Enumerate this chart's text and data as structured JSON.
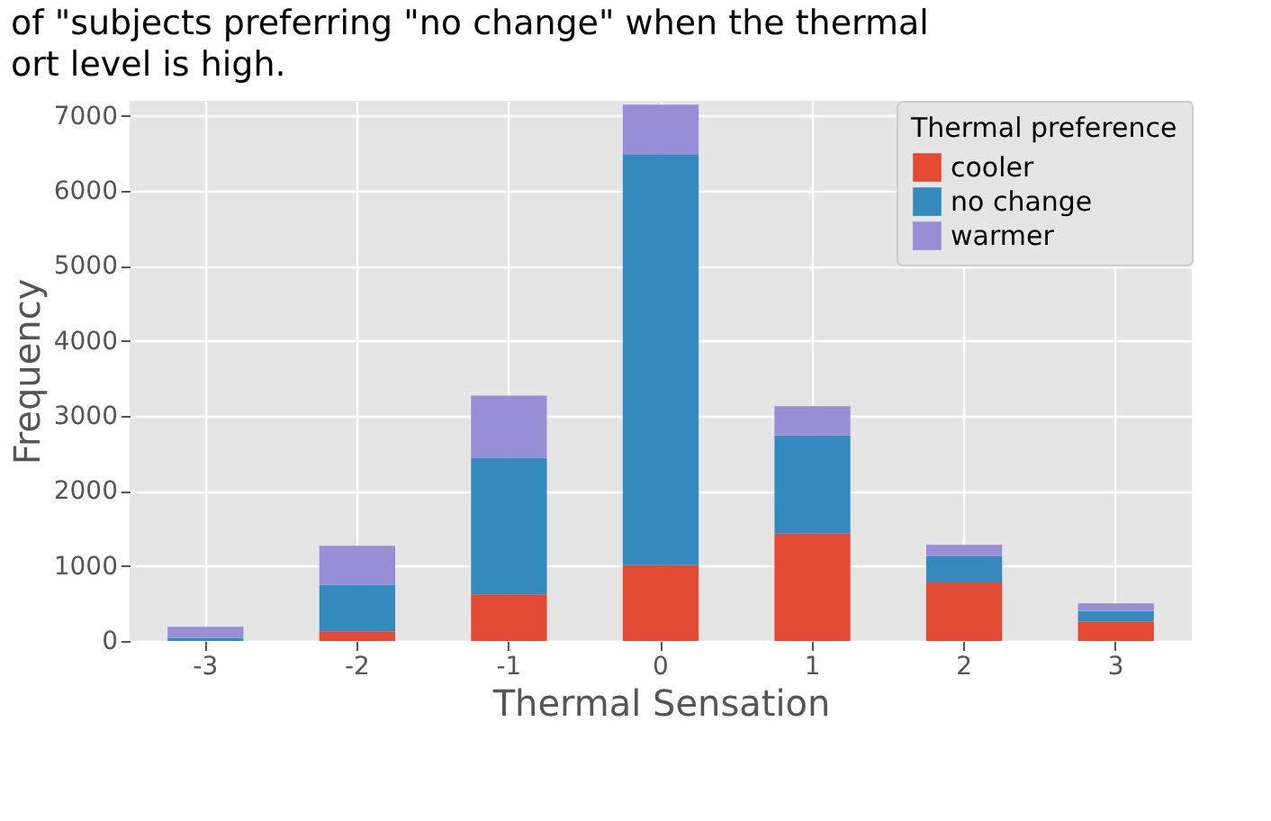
{
  "chart_data": {
    "type": "bar",
    "stacked": true,
    "xlabel": "Thermal Sensation",
    "ylabel": "Frequency",
    "legend_title": "Thermal preference",
    "annotations": [
      "of \"subjects preferring \"no change\" when the thermal",
      "ort level is high."
    ],
    "categories": [
      "-3",
      "-2",
      "-1",
      "0",
      "1",
      "2",
      "3"
    ],
    "series": [
      {
        "name": "cooler",
        "color": "#e24a33",
        "values": [
          0,
          130,
          620,
          1010,
          1430,
          780,
          260
        ]
      },
      {
        "name": "no change",
        "color": "#348abd",
        "values": [
          40,
          620,
          1820,
          5480,
          1310,
          350,
          140
        ]
      },
      {
        "name": "warmer",
        "color": "#988ed5",
        "values": [
          150,
          520,
          830,
          660,
          390,
          150,
          100
        ]
      }
    ],
    "ylim": [
      0,
      7200
    ],
    "yticks": [
      0,
      1000,
      2000,
      3000,
      4000,
      5000,
      6000,
      7000
    ],
    "grid": true,
    "legend": "top right"
  }
}
